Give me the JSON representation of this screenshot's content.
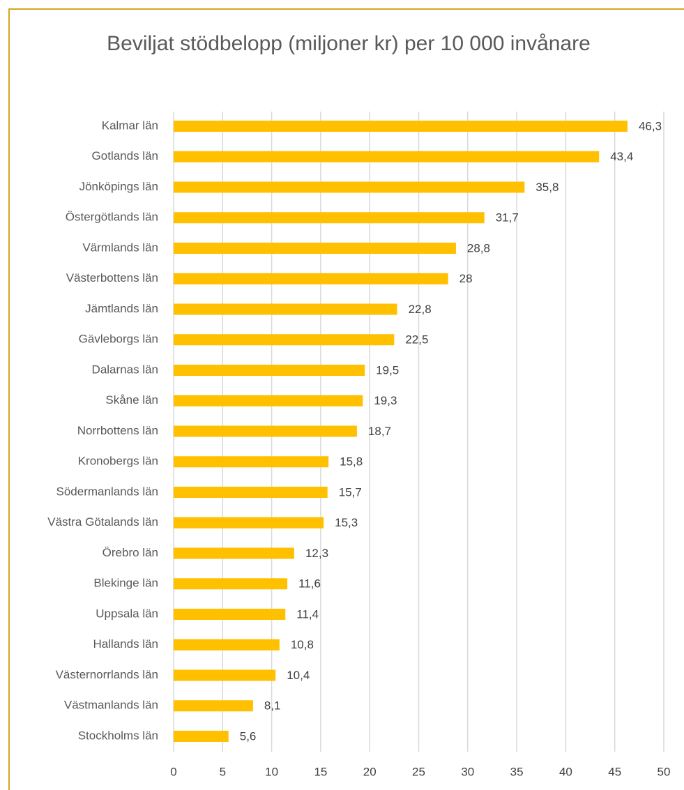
{
  "chart_data": {
    "type": "bar",
    "orientation": "horizontal",
    "title": "Beviljat stödbelopp (miljoner kr) per 10 000 invånare",
    "categories": [
      "Kalmar län",
      "Gotlands län",
      "Jönköpings län",
      "Östergötlands län",
      "Värmlands län",
      "Västerbottens län",
      "Jämtlands län",
      "Gävleborgs län",
      "Dalarnas län",
      "Skåne län",
      "Norrbottens län",
      "Kronobergs län",
      "Södermanlands län",
      "Västra Götalands län",
      "Örebro län",
      "Blekinge län",
      "Uppsala län",
      "Hallands län",
      "Västernorrlands län",
      "Västmanlands län",
      "Stockholms län"
    ],
    "values": [
      46.3,
      43.4,
      35.8,
      31.7,
      28.8,
      28,
      22.8,
      22.5,
      19.5,
      19.3,
      18.7,
      15.8,
      15.7,
      15.3,
      12.3,
      11.6,
      11.4,
      10.8,
      10.4,
      8.1,
      5.6
    ],
    "value_labels": [
      "46,3",
      "43,4",
      "35,8",
      "31,7",
      "28,8",
      "28",
      "22,8",
      "22,5",
      "19,5",
      "19,3",
      "18,7",
      "15,8",
      "15,7",
      "15,3",
      "12,3",
      "11,6",
      "11,4",
      "10,8",
      "10,4",
      "8,1",
      "5,6"
    ],
    "color": "#ffc000",
    "xlim": [
      0,
      50
    ],
    "xticks": [
      0,
      5,
      10,
      15,
      20,
      25,
      30,
      35,
      40,
      45,
      50
    ],
    "grid": true
  }
}
